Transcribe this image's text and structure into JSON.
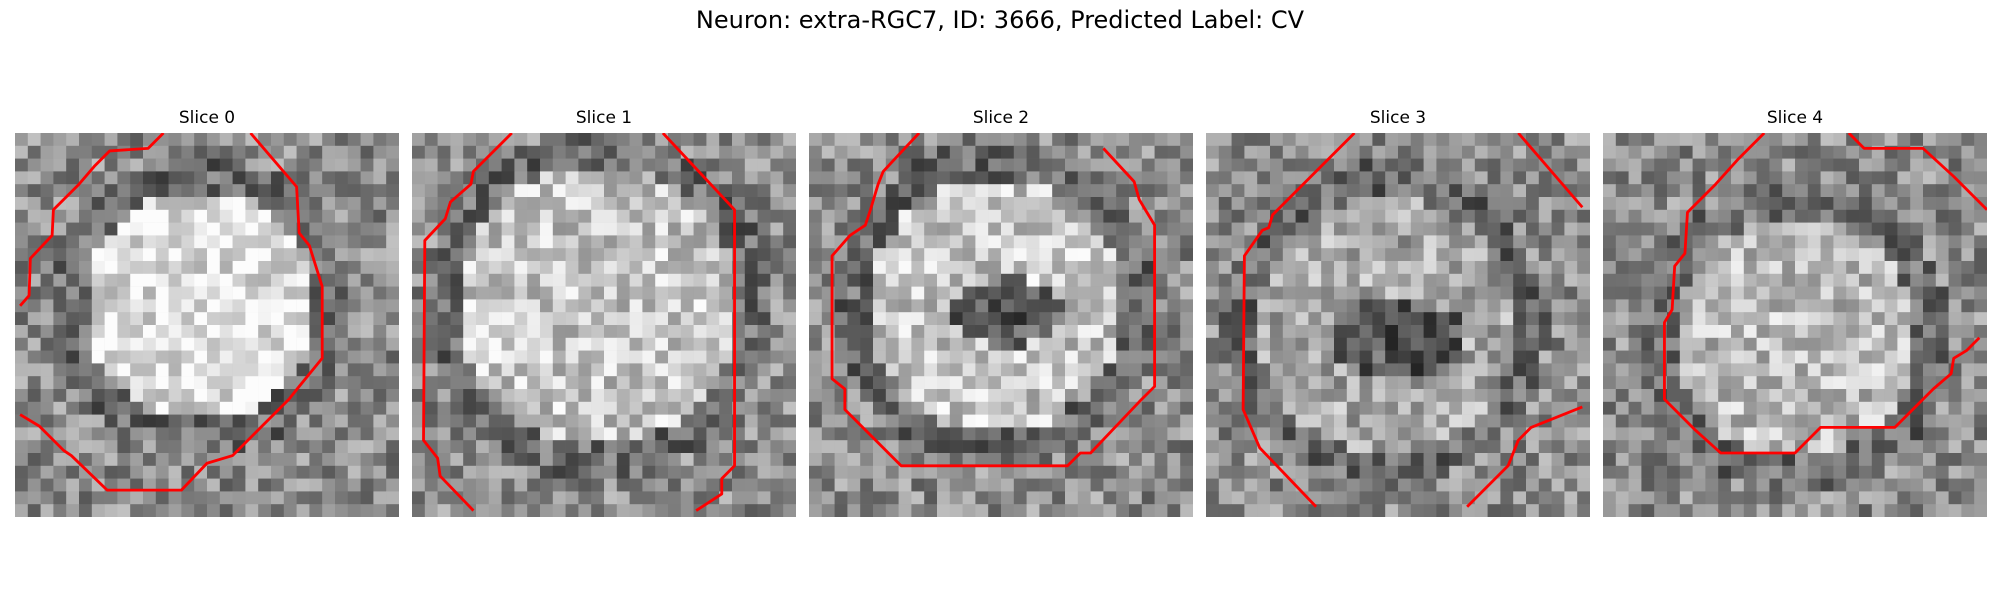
{
  "figure": {
    "title": "Neuron: extra-RGC7, ID: 3666, Predicted Label: CV"
  },
  "panels": [
    {
      "title": "Slice 0"
    },
    {
      "title": "Slice 1"
    },
    {
      "title": "Slice 2"
    },
    {
      "title": "Slice 3"
    },
    {
      "title": "Slice 4"
    }
  ],
  "colors": {
    "contour": "#ff0000",
    "background": "#ffffff",
    "text": "#000000"
  }
}
